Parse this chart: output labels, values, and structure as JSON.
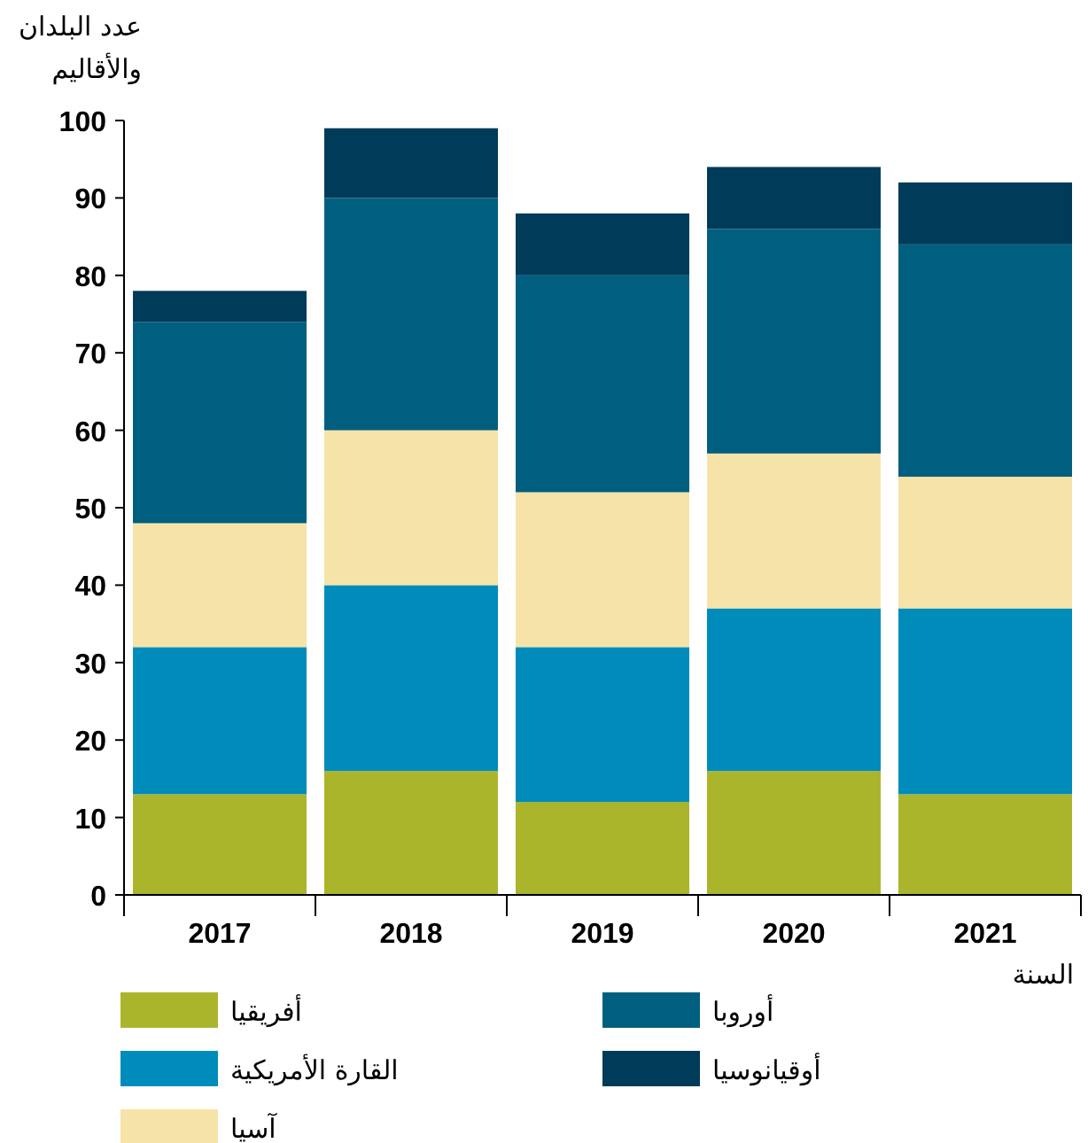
{
  "chart_data": {
    "type": "bar",
    "stacked": true,
    "ylabel": "عدد البلدان والأقاليم",
    "xlabel": "السنة",
    "categories": [
      "2017",
      "2018",
      "2019",
      "2020",
      "2021"
    ],
    "series": [
      {
        "name": "أفريقيا",
        "color": "#abb52b",
        "values": [
          13,
          16,
          12,
          16,
          13
        ]
      },
      {
        "name": "القارة الأمريكية",
        "color": "#008cba",
        "values": [
          19,
          24,
          20,
          21,
          24
        ]
      },
      {
        "name": "آسيا",
        "color": "#f6e3a8",
        "values": [
          16,
          20,
          20,
          20,
          17
        ]
      },
      {
        "name": "أوروبا",
        "color": "#005f7f",
        "values": [
          26,
          30,
          28,
          29,
          30
        ]
      },
      {
        "name": "أوقيانوسيا",
        "color": "#003b59",
        "values": [
          4,
          9,
          8,
          8,
          8
        ]
      }
    ],
    "ylim": [
      0,
      100
    ],
    "yticks": [
      0,
      10,
      20,
      30,
      40,
      50,
      60,
      70,
      80,
      90,
      100
    ],
    "legend": "bottom"
  }
}
